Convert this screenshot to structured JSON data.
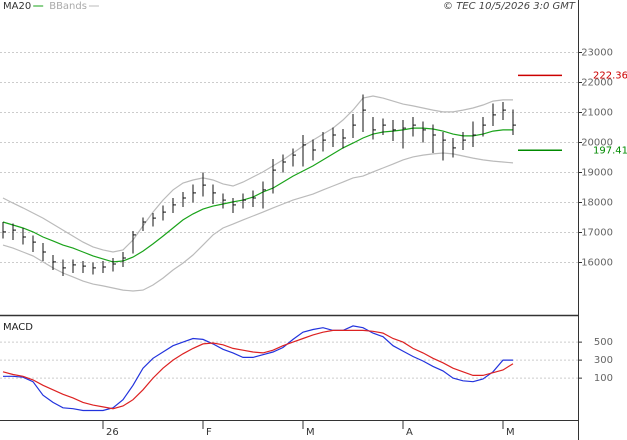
{
  "chart_data": [
    {
      "type": "hlc",
      "source": "© TEC 10/5/2026 3:0 GMT",
      "x": [
        0,
        1,
        2,
        3,
        4,
        5,
        6,
        7,
        8,
        9,
        10,
        11,
        12,
        13,
        14,
        15,
        16,
        17,
        18,
        19,
        20,
        21,
        22,
        23,
        24,
        25,
        26,
        27,
        28,
        29,
        30,
        31,
        32,
        33,
        34,
        35,
        36,
        37,
        38,
        39,
        40,
        41,
        42,
        43,
        44,
        45,
        46,
        47,
        48,
        49,
        50,
        51
      ],
      "high": [
        17350,
        17300,
        17150,
        16900,
        16650,
        16250,
        16100,
        16100,
        16050,
        16000,
        16050,
        16150,
        16350,
        17050,
        17500,
        17650,
        17900,
        18150,
        18350,
        18600,
        19000,
        18600,
        18300,
        18150,
        18300,
        18400,
        18700,
        19450,
        19600,
        19800,
        20250,
        20100,
        20350,
        20500,
        20450,
        20950,
        21600,
        20850,
        20800,
        20750,
        20750,
        20850,
        20700,
        20600,
        20350,
        20150,
        20350,
        20700,
        20850,
        21300,
        21350,
        21100
      ],
      "low": [
        16800,
        16750,
        16600,
        16350,
        16050,
        15750,
        15550,
        15650,
        15650,
        15600,
        15650,
        15700,
        15850,
        16300,
        17050,
        17200,
        17400,
        17650,
        17850,
        18000,
        18200,
        17950,
        17800,
        17650,
        17800,
        17850,
        17800,
        18300,
        19000,
        19200,
        19200,
        19400,
        19700,
        19850,
        19800,
        20150,
        20350,
        20100,
        20250,
        20050,
        19800,
        20200,
        20000,
        19650,
        19400,
        19500,
        19750,
        19850,
        20200,
        20550,
        20750,
        20250
      ],
      "close": [
        17020,
        17080,
        16850,
        16680,
        16350,
        16020,
        15820,
        15920,
        15880,
        15820,
        15850,
        15950,
        16150,
        16920,
        17350,
        17480,
        17680,
        17920,
        18150,
        18320,
        18580,
        18320,
        18080,
        17920,
        18080,
        18150,
        18420,
        19080,
        19350,
        19580,
        19920,
        19750,
        20080,
        20250,
        20150,
        20580,
        21080,
        20420,
        20580,
        20420,
        20480,
        20580,
        20420,
        20250,
        20080,
        19820,
        20080,
        20250,
        20580,
        20920,
        21080,
        20580
      ],
      "series": [
        {
          "name": "MA20",
          "color": "#1aa31a",
          "values": [
            17350,
            17250,
            17150,
            17020,
            16850,
            16720,
            16580,
            16480,
            16350,
            16220,
            16120,
            16020,
            16050,
            16180,
            16380,
            16620,
            16880,
            17150,
            17420,
            17620,
            17780,
            17880,
            17950,
            18020,
            18080,
            18180,
            18350,
            18480,
            18680,
            18880,
            19050,
            19220,
            19420,
            19620,
            19820,
            19980,
            20150,
            20280,
            20350,
            20380,
            20420,
            20480,
            20480,
            20450,
            20380,
            20280,
            20220,
            20220,
            20280,
            20380,
            20420,
            20420
          ]
        },
        {
          "name": "BBands",
          "color": "#bbbbbb",
          "upper": [
            18150,
            17980,
            17820,
            17650,
            17480,
            17280,
            17080,
            16880,
            16680,
            16520,
            16420,
            16350,
            16420,
            16750,
            17220,
            17680,
            18080,
            18420,
            18650,
            18750,
            18820,
            18750,
            18620,
            18550,
            18680,
            18850,
            19020,
            19220,
            19420,
            19650,
            19880,
            20080,
            20280,
            20480,
            20750,
            21080,
            21480,
            21550,
            21480,
            21380,
            21280,
            21220,
            21150,
            21080,
            21020,
            21020,
            21080,
            21150,
            21250,
            21380,
            21420,
            21420
          ],
          "lower": [
            16580,
            16480,
            16350,
            16220,
            16020,
            15820,
            15650,
            15520,
            15380,
            15280,
            15220,
            15150,
            15080,
            15050,
            15080,
            15250,
            15480,
            15750,
            15980,
            16250,
            16580,
            16920,
            17150,
            17280,
            17420,
            17550,
            17680,
            17820,
            17950,
            18080,
            18180,
            18280,
            18420,
            18550,
            18680,
            18820,
            18880,
            19020,
            19150,
            19280,
            19420,
            19520,
            19580,
            19620,
            19650,
            19620,
            19550,
            19480,
            19420,
            19380,
            19350,
            19320
          ]
        }
      ],
      "levels": [
        {
          "value": 22236,
          "label": "222.36",
          "color": "#cc0000"
        },
        {
          "value": 19741,
          "label": "197.41",
          "color": "#008a00"
        }
      ],
      "xlim": [
        -0.3,
        57.5
      ],
      "ylim": [
        14250,
        24750
      ],
      "yticks": [
        16000,
        17000,
        18000,
        19000,
        20000,
        21000,
        22000,
        23000
      ],
      "grid": true
    },
    {
      "type": "line",
      "title": "MACD",
      "x": [
        0,
        1,
        2,
        3,
        4,
        5,
        6,
        7,
        8,
        9,
        10,
        11,
        12,
        13,
        14,
        15,
        16,
        17,
        18,
        19,
        20,
        21,
        22,
        23,
        24,
        25,
        26,
        27,
        28,
        29,
        30,
        31,
        32,
        33,
        34,
        35,
        36,
        37,
        38,
        39,
        40,
        41,
        42,
        43,
        44,
        45,
        46,
        47,
        48,
        49,
        50,
        51
      ],
      "series": [
        {
          "color": "#2233dd",
          "values": [
            120,
            120,
            110,
            60,
            -90,
            -170,
            -230,
            -240,
            -260,
            -260,
            -260,
            -230,
            -140,
            20,
            210,
            320,
            390,
            460,
            500,
            540,
            530,
            480,
            420,
            380,
            330,
            330,
            360,
            390,
            440,
            530,
            610,
            640,
            660,
            630,
            630,
            680,
            660,
            600,
            560,
            460,
            400,
            340,
            290,
            230,
            180,
            100,
            70,
            60,
            90,
            170,
            300,
            300
          ]
        },
        {
          "color": "#dd2222",
          "values": [
            170,
            140,
            120,
            80,
            20,
            -30,
            -80,
            -120,
            -170,
            -200,
            -220,
            -240,
            -210,
            -140,
            -30,
            100,
            210,
            300,
            370,
            430,
            480,
            490,
            470,
            430,
            410,
            390,
            380,
            410,
            460,
            500,
            540,
            580,
            610,
            630,
            630,
            630,
            630,
            620,
            600,
            540,
            500,
            430,
            380,
            320,
            270,
            210,
            170,
            130,
            130,
            160,
            190,
            260
          ]
        }
      ],
      "xlim": [
        -0.3,
        57.5
      ],
      "ylim": [
        -365,
        768
      ],
      "yticks": [
        100,
        300,
        500
      ],
      "xticks": [
        {
          "value": 10,
          "label": "26"
        },
        {
          "value": 20,
          "label": "F"
        },
        {
          "value": 30,
          "label": "M"
        },
        {
          "value": 40,
          "label": "A"
        },
        {
          "value": 50,
          "label": "M"
        }
      ],
      "grid": true
    }
  ]
}
